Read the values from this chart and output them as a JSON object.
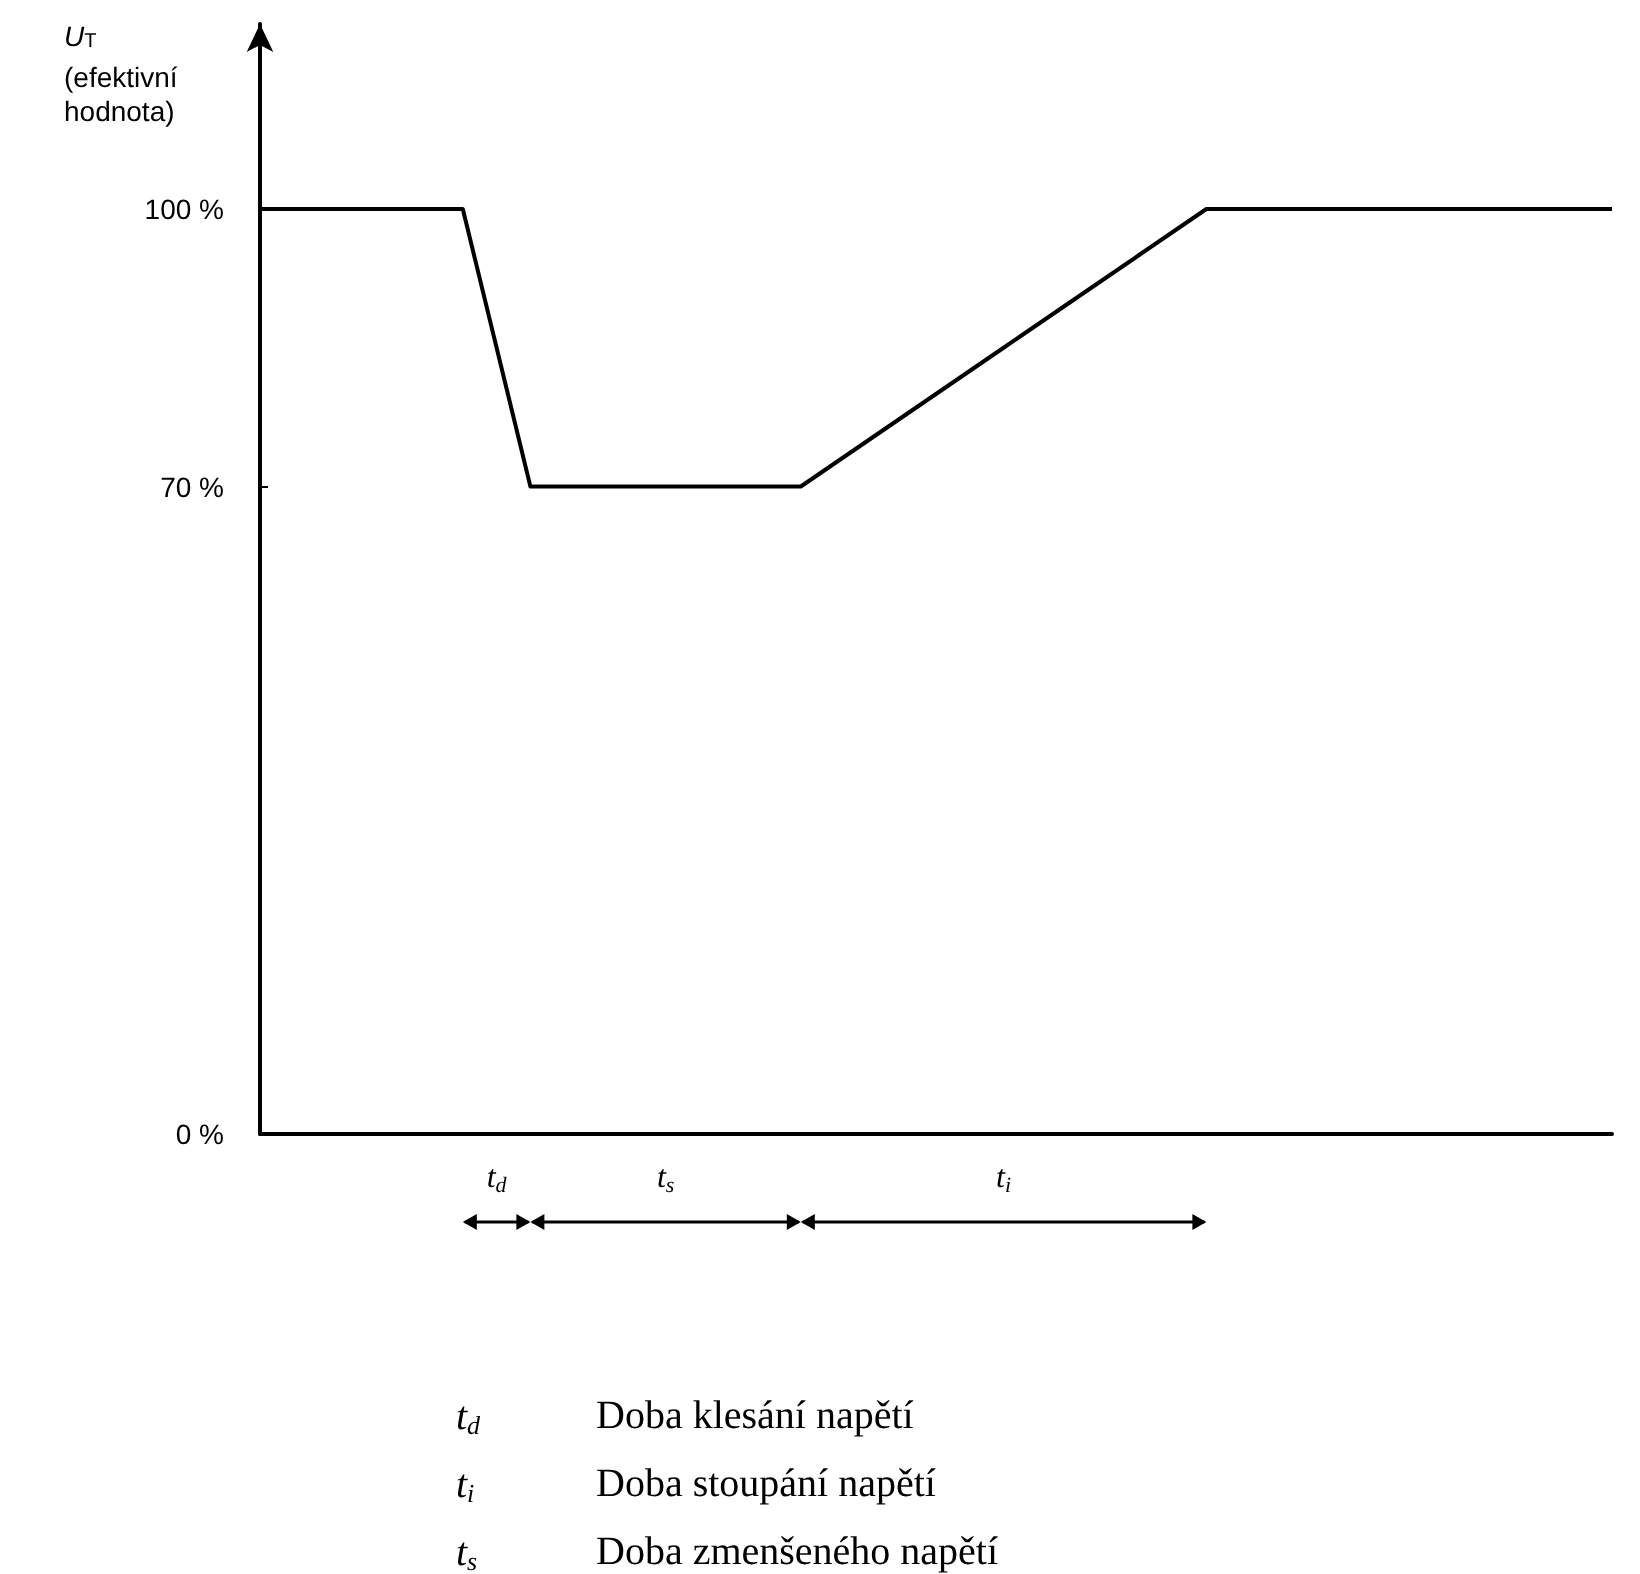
{
  "chart_data": {
    "type": "line",
    "ylabel": "U$_{T}$ (efektivní hodnota)",
    "categories": [
      null,
      null,
      null,
      null,
      null,
      null,
      null,
      null,
      null,
      null,
      null,
      null,
      null,
      null,
      null,
      null,
      null,
      null,
      null,
      null,
      null
    ],
    "values": [
      100,
      100,
      100,
      100,
      70,
      70,
      70,
      70,
      70,
      75,
      80,
      85,
      90,
      95,
      100,
      100,
      100,
      100,
      100,
      100,
      100
    ],
    "color": "#000000",
    "ylim": [
      0,
      120
    ],
    "yticks": [
      {
        "value": 0,
        "label": "0 %"
      },
      {
        "value": 70,
        "label": "70 %"
      },
      {
        "value": 100,
        "label": "100 %"
      }
    ],
    "grid": false,
    "marker": "none",
    "line_style": "solid",
    "tick_labels": "y",
    "annotations": [
      "t$_{d}$",
      "t$_{s}$",
      "t$_{i}$",
      "t$_{d}$   Doba klesání napětí",
      "t$_{i}$   Doba stoupání napětí",
      "t$_{s}$   Doba zmenšeného napětí"
    ]
  }
}
